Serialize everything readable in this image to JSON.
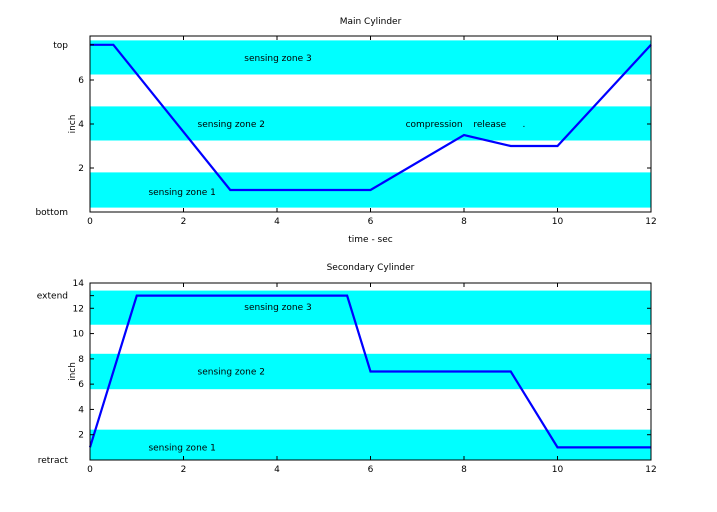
{
  "chart_data": [
    {
      "type": "line",
      "title": "Main Cylinder",
      "xlabel": "time - sec",
      "ylabel": "inch",
      "xlim": [
        0,
        12
      ],
      "ylim": [
        0,
        8
      ],
      "xticks": [
        0,
        2,
        4,
        6,
        8,
        10,
        12
      ],
      "xtick_labels": [
        "0",
        "2",
        "4",
        "6",
        "8",
        "10",
        "12"
      ],
      "yticks": [
        2,
        4,
        6
      ],
      "ytick_labels": [
        "2",
        "4",
        "6"
      ],
      "extra_ylabels": [
        {
          "y": 7.6,
          "text": "top"
        },
        {
          "y": 0,
          "text": "bottom"
        }
      ],
      "bands": [
        {
          "y0": 0.2,
          "y1": 1.8,
          "label": "sensing zone 1",
          "label_x": 1.25,
          "label_y": 0.9
        },
        {
          "y0": 3.25,
          "y1": 4.8,
          "label": "sensing zone 2",
          "label_x": 2.3,
          "label_y": 4.0
        },
        {
          "y0": 6.25,
          "y1": 7.8,
          "label": "sensing zone 3",
          "label_x": 3.3,
          "label_y": 7.0
        }
      ],
      "annotations": [
        {
          "x": 6.75,
          "y": 4.0,
          "text": "compression"
        },
        {
          "x": 8.2,
          "y": 4.0,
          "text": "release"
        },
        {
          "x": 9.25,
          "y": 4.0,
          "text": "."
        }
      ],
      "grid": false,
      "band_color": "#00ffff",
      "line_color": "#0000ff",
      "series": [
        {
          "x": [
            0,
            0.5,
            3,
            6,
            8,
            9,
            10,
            12
          ],
          "y": [
            7.6,
            7.6,
            1,
            1,
            3.5,
            3,
            3,
            7.6
          ]
        }
      ]
    },
    {
      "type": "line",
      "title": "Secondary Cylinder",
      "xlabel": "",
      "ylabel": "inch",
      "xlim": [
        0,
        12
      ],
      "ylim": [
        0,
        14
      ],
      "xticks": [
        0,
        2,
        4,
        6,
        8,
        10,
        12
      ],
      "xtick_labels": [
        "0",
        "2",
        "4",
        "6",
        "8",
        "10",
        "12"
      ],
      "yticks": [
        2,
        4,
        6,
        8,
        10,
        12,
        14
      ],
      "ytick_labels": [
        "2",
        "4",
        "6",
        "8",
        "10",
        "12",
        "14"
      ],
      "extra_ylabels": [
        {
          "y": 13,
          "text": "extend"
        },
        {
          "y": 0,
          "text": "retract"
        }
      ],
      "bands": [
        {
          "y0": 0,
          "y1": 2.4,
          "label": "sensing zone 1",
          "label_x": 1.25,
          "label_y": 1.0
        },
        {
          "y0": 5.6,
          "y1": 8.4,
          "label": "sensing zone 2",
          "label_x": 2.3,
          "label_y": 7.0
        },
        {
          "y0": 10.7,
          "y1": 13.4,
          "label": "sensing zone 3",
          "label_x": 3.3,
          "label_y": 12.1
        }
      ],
      "annotations": [],
      "grid": false,
      "band_color": "#00ffff",
      "line_color": "#0000ff",
      "series": [
        {
          "x": [
            0,
            1,
            5.5,
            6,
            9,
            10,
            12
          ],
          "y": [
            1,
            13,
            13,
            7,
            7,
            1,
            1
          ]
        }
      ]
    }
  ]
}
